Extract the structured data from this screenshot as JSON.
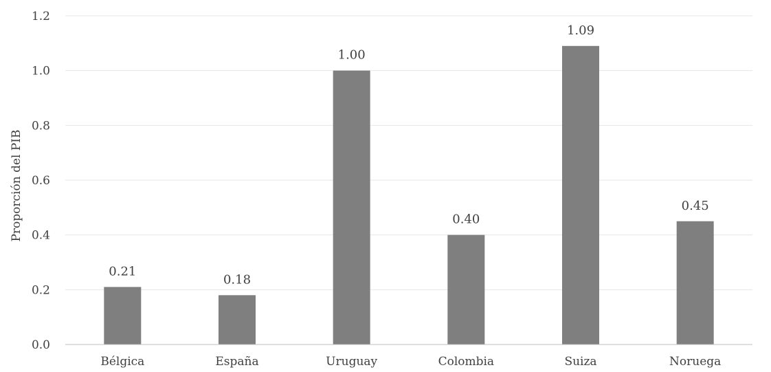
{
  "chart_data": {
    "type": "bar",
    "title": "",
    "xlabel": "",
    "ylabel": "Proporción del PIB",
    "categories": [
      "Bélgica",
      "España",
      "Uruguay",
      "Colombia",
      "Suiza",
      "Noruega"
    ],
    "values": [
      0.21,
      0.18,
      1.0,
      0.4,
      1.09,
      0.45
    ],
    "data_labels": [
      "0.21",
      "0.18",
      "1.00",
      "0.40",
      "1.09",
      "0.45"
    ],
    "ylim": [
      0,
      1.2
    ],
    "yticks": [
      0.0,
      0.2,
      0.4,
      0.6,
      0.8,
      1.0,
      1.2
    ],
    "ytick_labels": [
      "0.0",
      "0.2",
      "0.4",
      "0.6",
      "0.8",
      "1.0",
      "1.2"
    ],
    "grid": true,
    "legend": "none",
    "colors": {
      "bar": "#7f7f7f",
      "grid": "#e6e6e6",
      "axis": "#bfbfbf",
      "text": "#404040"
    }
  }
}
